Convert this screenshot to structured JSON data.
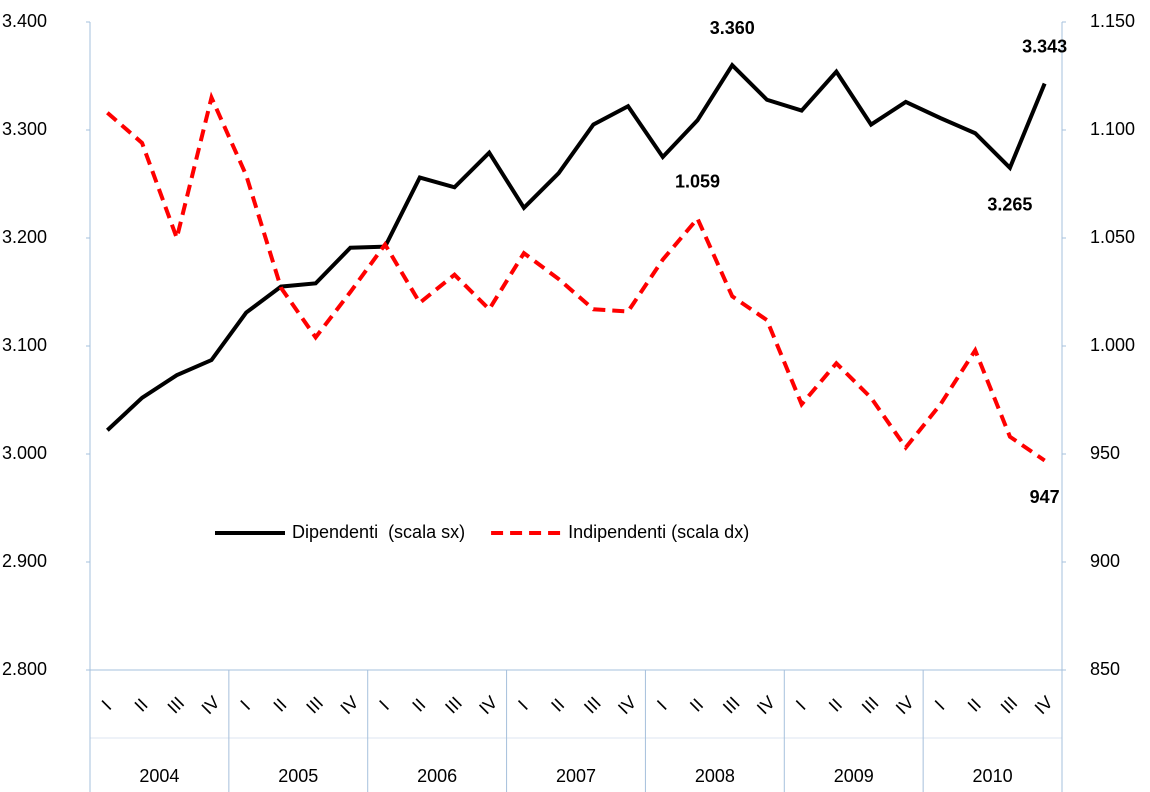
{
  "chart_data": {
    "type": "line",
    "categories": [
      "I",
      "II",
      "III",
      "IV",
      "I",
      "II",
      "III",
      "IV",
      "I",
      "II",
      "III",
      "IV",
      "I",
      "II",
      "III",
      "IV",
      "I",
      "II",
      "III",
      "IV",
      "I",
      "II",
      "III",
      "IV",
      "I",
      "II",
      "III",
      "IV"
    ],
    "years": [
      "2004",
      "2005",
      "2006",
      "2007",
      "2008",
      "2009",
      "2010"
    ],
    "series": [
      {
        "name": "Dipendenti  (scala sx)",
        "color": "#000000",
        "dash": false,
        "values": [
          3022,
          3052,
          3073,
          3087,
          3131,
          3155,
          3158,
          3191,
          3192,
          3256,
          3247,
          3279,
          3228,
          3260,
          3305,
          3322,
          3275,
          3309,
          3360,
          3328,
          3318,
          3354,
          3305,
          3326,
          3311,
          3297,
          3265,
          3343
        ],
        "value_labels": [
          null,
          null,
          null,
          null,
          null,
          null,
          null,
          null,
          null,
          null,
          null,
          null,
          null,
          null,
          null,
          null,
          null,
          null,
          "3.360",
          null,
          null,
          null,
          null,
          null,
          null,
          null,
          "3.265",
          "3.343"
        ]
      },
      {
        "name": "Indipendenti (scala dx)",
        "color": "#ff0000",
        "dash": true,
        "axis": "y2",
        "values": [
          1108,
          1094,
          1050,
          1115,
          1079,
          1027,
          1004,
          1025,
          1047,
          1020,
          1033,
          1017,
          1043,
          1031,
          1017,
          1016,
          1040,
          1059,
          1023,
          1012,
          973,
          992,
          976,
          953,
          973,
          998,
          958,
          947
        ],
        "value_labels": [
          null,
          null,
          null,
          null,
          null,
          null,
          null,
          null,
          null,
          null,
          null,
          null,
          null,
          null,
          null,
          null,
          null,
          "1.059",
          null,
          null,
          null,
          null,
          null,
          null,
          null,
          null,
          null,
          "947"
        ]
      }
    ],
    "ylim": [
      2800,
      3400
    ],
    "yticks": [
      {
        "value": 2800,
        "label": "2.800"
      },
      {
        "value": 2900,
        "label": "2.900"
      },
      {
        "value": 3000,
        "label": "3.000"
      },
      {
        "value": 3100,
        "label": "3.100"
      },
      {
        "value": 3200,
        "label": "3.200"
      },
      {
        "value": 3300,
        "label": "3.300"
      },
      {
        "value": 3400,
        "label": "3.400"
      }
    ],
    "y2lim": [
      850,
      1150
    ],
    "y2ticks": [
      850,
      900,
      950,
      {
        "value": 1000,
        "label": "1.000"
      },
      {
        "value": 1050,
        "label": "1.050"
      },
      {
        "value": 1100,
        "label": "1.100"
      },
      {
        "value": 1150,
        "label": "1.150"
      }
    ],
    "grid": false,
    "legend": "center"
  }
}
